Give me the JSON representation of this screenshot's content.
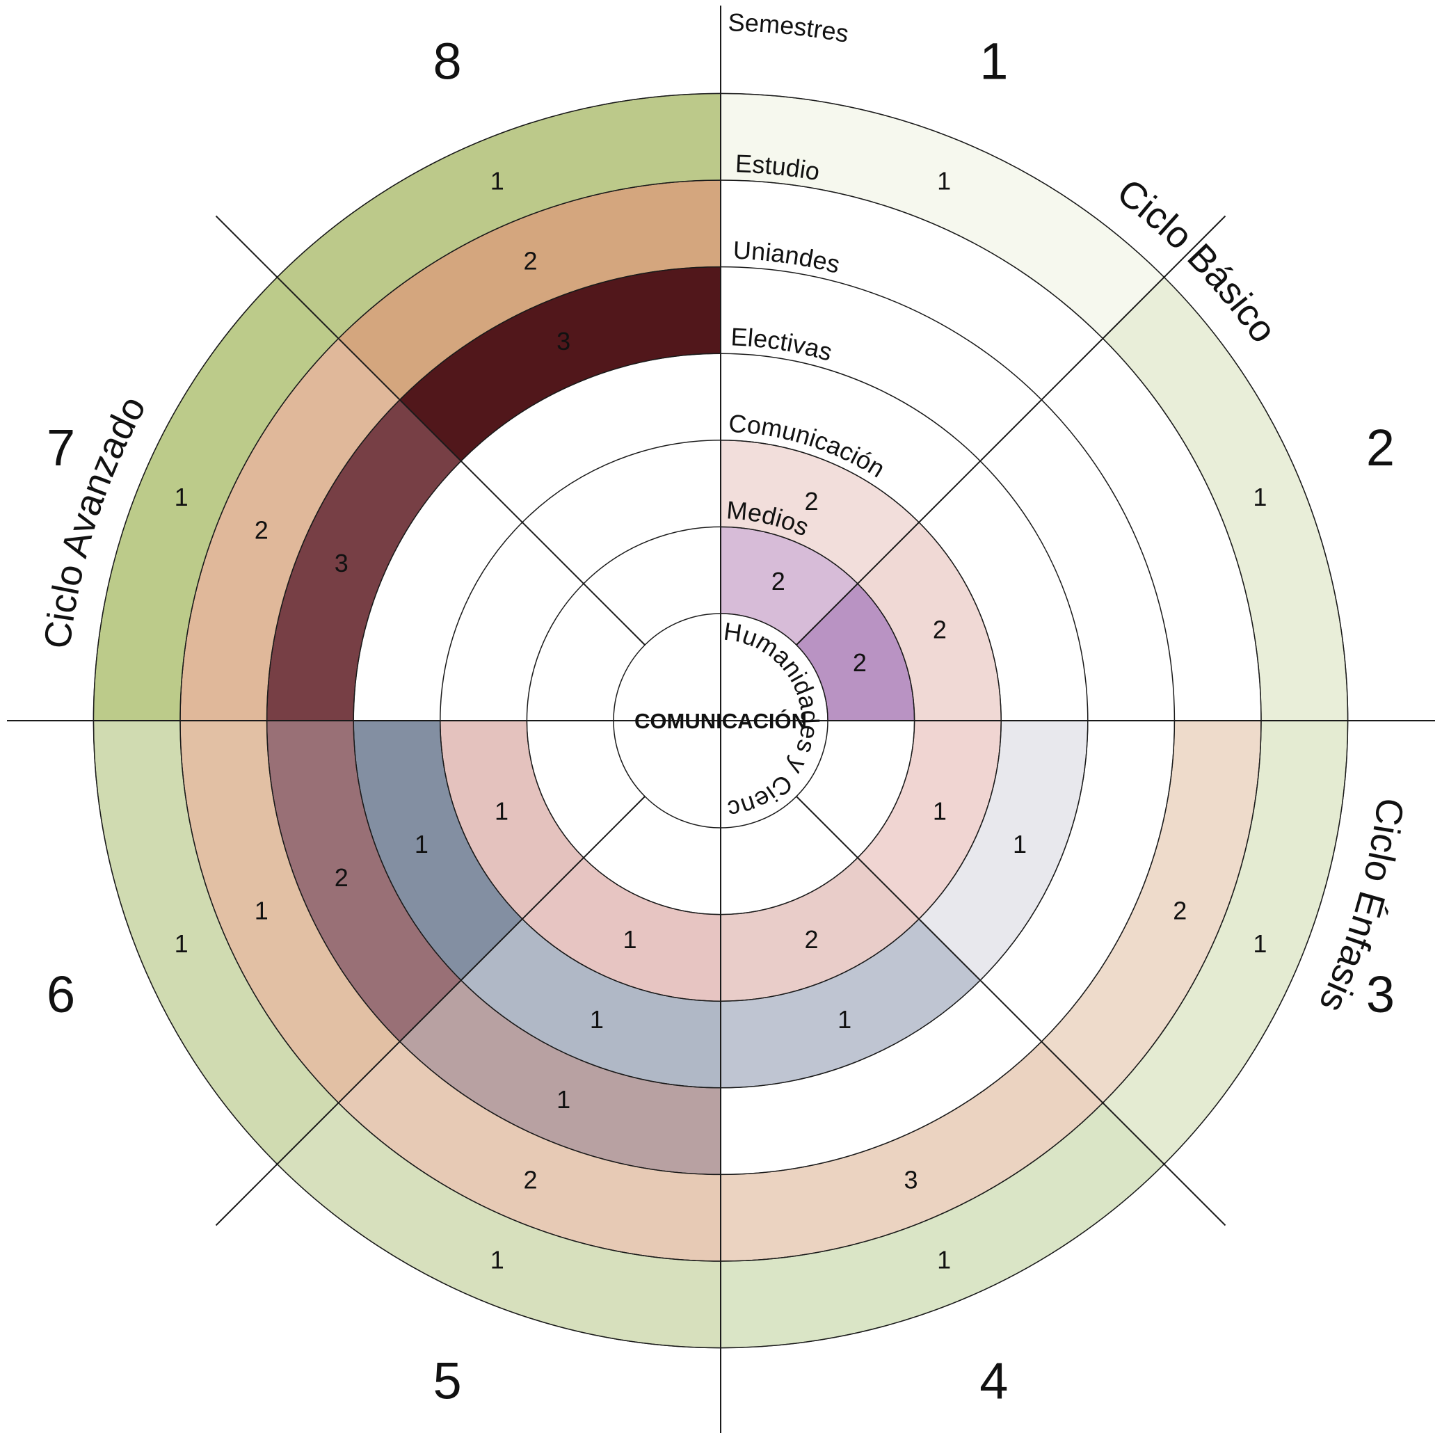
{
  "center_title": "COMUNICACIÓN",
  "axis_label": "Semestres",
  "rings": [
    {
      "key": "humanidades",
      "label": "Humanidades y Ciencias Básicas"
    },
    {
      "key": "medios",
      "label": "Medios"
    },
    {
      "key": "comunicacion",
      "label": "Comunicación"
    },
    {
      "key": "electivas",
      "label": "Electivas"
    },
    {
      "key": "uniandes",
      "label": "Uniandes"
    },
    {
      "key": "estudio",
      "label": "Estudio"
    }
  ],
  "semesters": [
    "1",
    "2",
    "3",
    "4",
    "5",
    "6",
    "7",
    "8"
  ],
  "cycles": [
    {
      "key": "basico",
      "label": "Ciclo Básico"
    },
    {
      "key": "enfasis",
      "label": "Ciclo Énfasis"
    },
    {
      "key": "avanzado",
      "label": "Ciclo Avanzado"
    }
  ],
  "cells": [
    {
      "ring": 1,
      "semester": 1,
      "value": "2",
      "color": "#d7bcd8"
    },
    {
      "ring": 1,
      "semester": 2,
      "value": "2",
      "color": "#b993c3"
    },
    {
      "ring": 2,
      "semester": 1,
      "value": "2",
      "color": "#f2dedb"
    },
    {
      "ring": 2,
      "semester": 2,
      "value": "2",
      "color": "#f0d9d5"
    },
    {
      "ring": 2,
      "semester": 3,
      "value": "1",
      "color": "#f0d5d2"
    },
    {
      "ring": 2,
      "semester": 4,
      "value": "2",
      "color": "#e9cdc9"
    },
    {
      "ring": 2,
      "semester": 5,
      "value": "1",
      "color": "#e7c5c2"
    },
    {
      "ring": 2,
      "semester": 6,
      "value": "1",
      "color": "#e4c2be"
    },
    {
      "ring": 3,
      "semester": 3,
      "value": "1",
      "color": "#e8e8ed"
    },
    {
      "ring": 3,
      "semester": 4,
      "value": "1",
      "color": "#bfc5d2"
    },
    {
      "ring": 3,
      "semester": 5,
      "value": "1",
      "color": "#b0b8c6"
    },
    {
      "ring": 3,
      "semester": 6,
      "value": "1",
      "color": "#838fa2"
    },
    {
      "ring": 4,
      "semester": 5,
      "value": "1",
      "color": "#b8a1a2"
    },
    {
      "ring": 4,
      "semester": 6,
      "value": "2",
      "color": "#997076"
    },
    {
      "ring": 4,
      "semester": 7,
      "value": "3",
      "color": "#773f45"
    },
    {
      "ring": 4,
      "semester": 8,
      "value": "3",
      "color": "#51171b"
    },
    {
      "ring": 5,
      "semester": 3,
      "value": "2",
      "color": "#eedbcb"
    },
    {
      "ring": 5,
      "semester": 4,
      "value": "3",
      "color": "#ebd3c1"
    },
    {
      "ring": 5,
      "semester": 5,
      "value": "2",
      "color": "#e7cab5"
    },
    {
      "ring": 5,
      "semester": 6,
      "value": "1",
      "color": "#e2c0a4"
    },
    {
      "ring": 5,
      "semester": 7,
      "value": "2",
      "color": "#e0b89a"
    },
    {
      "ring": 5,
      "semester": 8,
      "value": "2",
      "color": "#d4a67e"
    },
    {
      "ring": 6,
      "semester": 1,
      "value": "1",
      "color": "#f6f8ee"
    },
    {
      "ring": 6,
      "semester": 2,
      "value": "1",
      "color": "#e9eed9"
    },
    {
      "ring": 6,
      "semester": 3,
      "value": "1",
      "color": "#e4ebd2"
    },
    {
      "ring": 6,
      "semester": 4,
      "value": "1",
      "color": "#dae5c6"
    },
    {
      "ring": 6,
      "semester": 5,
      "value": "1",
      "color": "#d7e0bd"
    },
    {
      "ring": 6,
      "semester": 6,
      "value": "1",
      "color": "#d0dbb1"
    },
    {
      "ring": 6,
      "semester": 7,
      "value": "1",
      "color": "#bccb8a"
    },
    {
      "ring": 6,
      "semester": 8,
      "value": "1",
      "color": "#bcc98a"
    }
  ]
}
